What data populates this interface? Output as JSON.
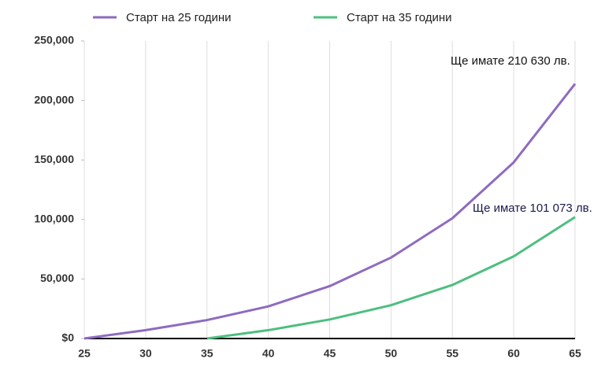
{
  "chart_data": {
    "type": "line",
    "x": [
      25,
      30,
      35,
      40,
      45,
      50,
      55,
      60,
      65
    ],
    "series": [
      {
        "name": "Старт на 25 години",
        "color": "#8e6bbf",
        "values": [
          0,
          7000,
          15500,
          27000,
          44000,
          68000,
          101000,
          148000,
          214000
        ]
      },
      {
        "name": "Старт на 35 години",
        "color": "#4dbf7f",
        "values": [
          null,
          null,
          0,
          7000,
          16000,
          28000,
          45000,
          69000,
          102000
        ]
      }
    ],
    "annotations": [
      "Ще имате 210 630 лв.",
      "Ще имате 101 073 лв."
    ],
    "xlim": [
      25,
      65
    ],
    "xticks": [
      25,
      30,
      35,
      40,
      45,
      50,
      55,
      60,
      65
    ],
    "ylim": [
      0,
      250000
    ],
    "yticks": [
      {
        "value": 0,
        "label": "$0"
      },
      {
        "value": 50000,
        "label": "50,000"
      },
      {
        "value": 100000,
        "label": "100,000"
      },
      {
        "value": 150000,
        "label": "150,000"
      },
      {
        "value": 200000,
        "label": "200,000"
      },
      {
        "value": 250000,
        "label": "250,000"
      }
    ],
    "grid": "x"
  }
}
